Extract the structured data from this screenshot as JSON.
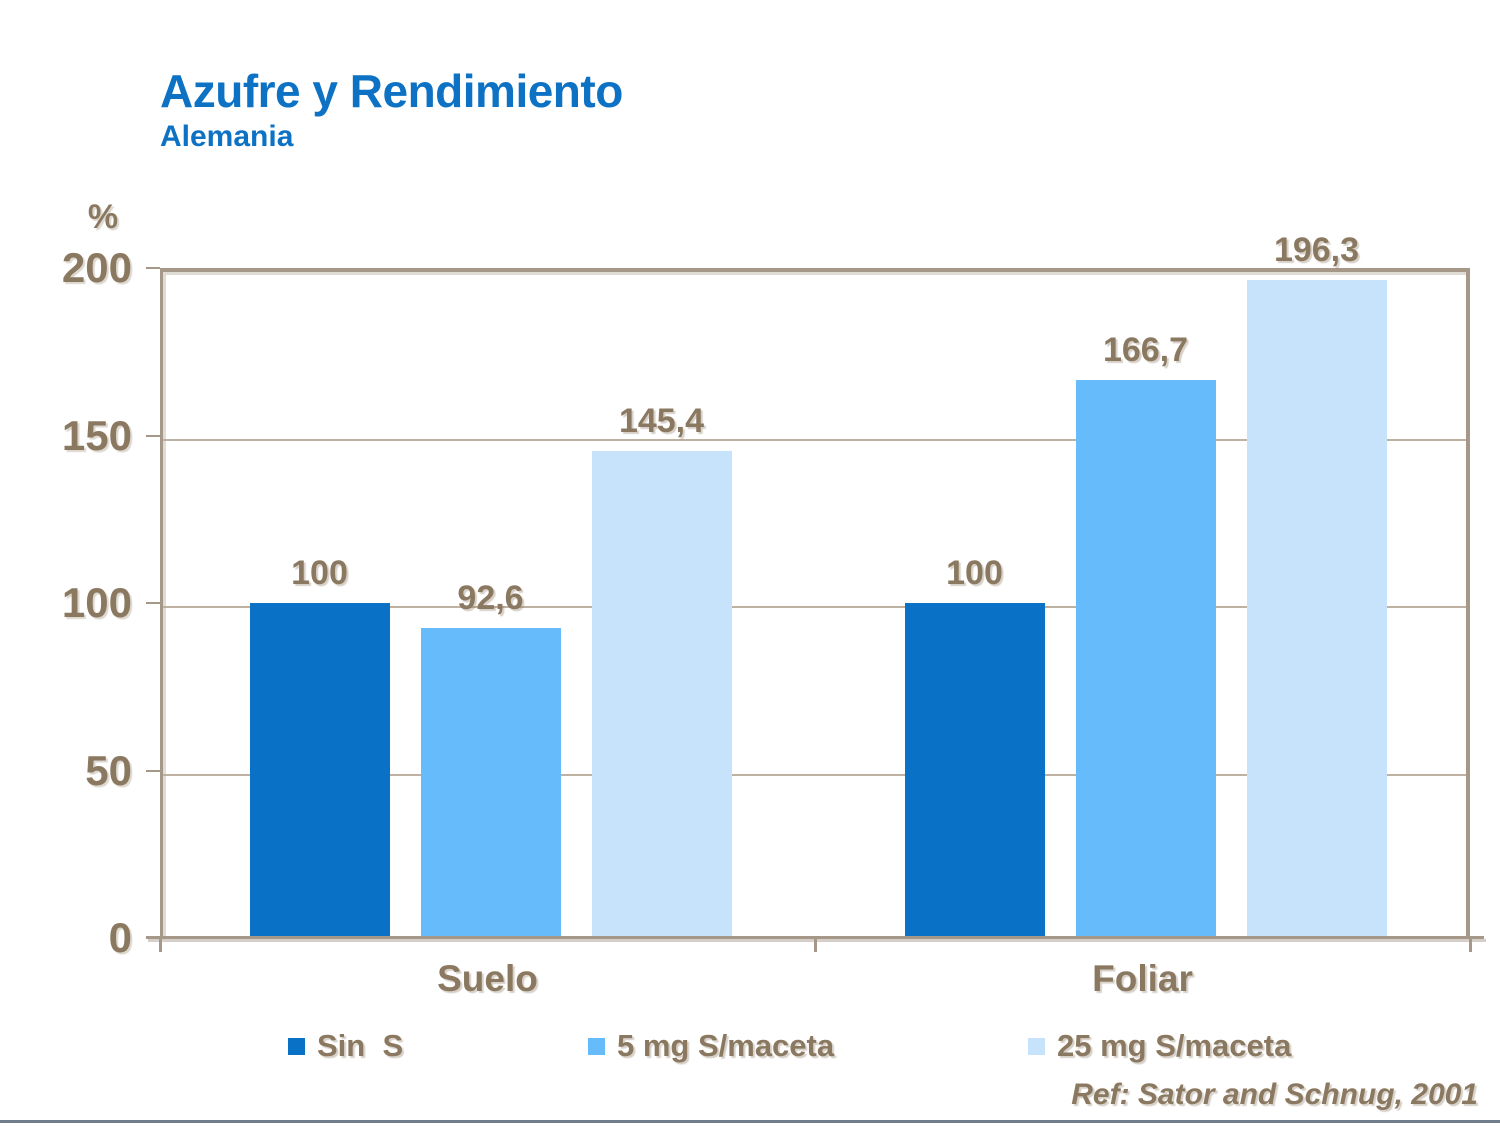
{
  "header": {
    "title": "Azufre y Rendimiento",
    "subtitle": "Alemania"
  },
  "axis": {
    "unit_label": "%"
  },
  "footer": {
    "reference": "Ref: Sator and Schnug, 2001"
  },
  "colors": {
    "title_blue": "#0d72c4",
    "text_brown": "#8a7960",
    "gridline": "#beb1a2",
    "border": "#a69888",
    "bottom_rule": "#6f7d8c",
    "series_dark_blue": "#0a72c6",
    "series_medium_blue": "#66bbfa",
    "series_light_blue": "#c7e2fb"
  },
  "chart_data": {
    "type": "bar",
    "title": "Azufre y Rendimiento",
    "subtitle": "Alemania",
    "xlabel": "",
    "ylabel": "%",
    "ylim": [
      0,
      200
    ],
    "yticks": [
      0,
      50,
      100,
      150,
      200
    ],
    "grid": true,
    "legend_position": "bottom",
    "categories": [
      "Suelo",
      "Foliar"
    ],
    "series": [
      {
        "name": "Sin  S",
        "color": "#0a72c6",
        "values": [
          100,
          100
        ],
        "value_labels": [
          "100",
          "100"
        ]
      },
      {
        "name": "5 mg S/maceta",
        "color": "#66bbfa",
        "values": [
          92.6,
          166.7
        ],
        "value_labels": [
          "92,6",
          "166,7"
        ]
      },
      {
        "name": "25 mg S/maceta",
        "color": "#c7e2fb",
        "values": [
          145.4,
          196.3
        ],
        "value_labels": [
          "145,4",
          "196,3"
        ]
      }
    ],
    "annotation": "Ref: Sator and Schnug, 2001"
  }
}
